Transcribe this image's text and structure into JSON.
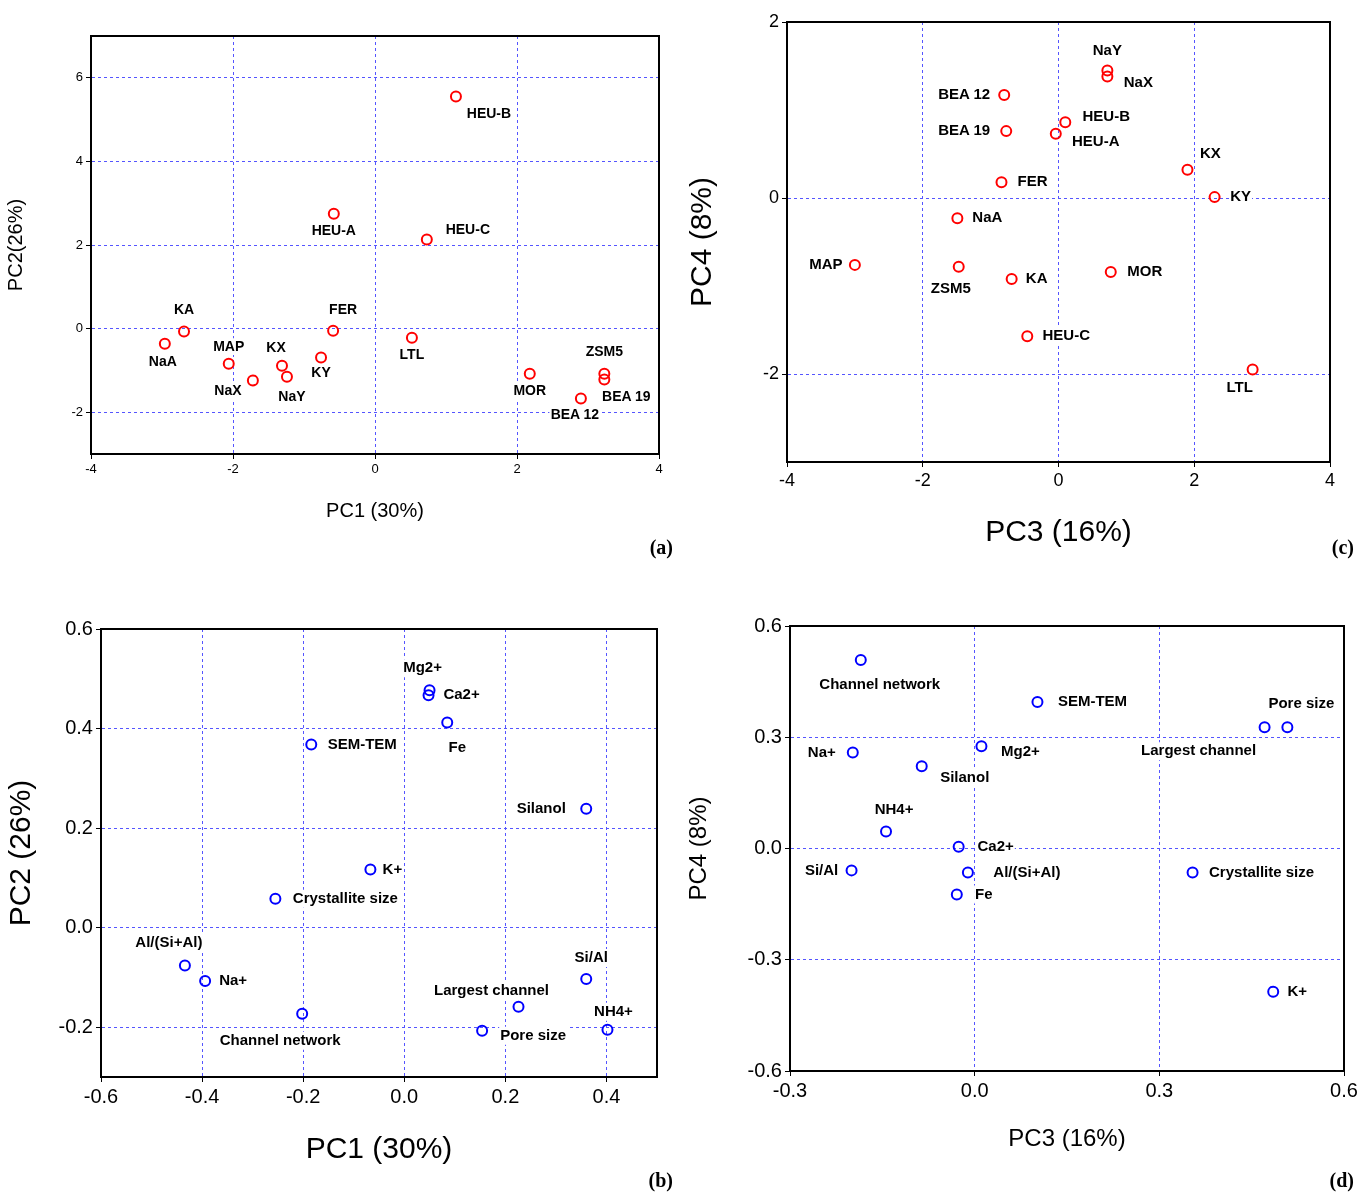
{
  "chart_data": [
    {
      "type": "scatter",
      "xlabel": "PC1 (30%)",
      "ylabel": "PC2(26%)",
      "xlim": [
        -4,
        4
      ],
      "xticks": [
        -4,
        -2,
        0,
        2,
        4
      ],
      "ylim": [
        -3,
        7
      ],
      "yticks": [
        -2,
        0,
        2,
        4,
        6
      ],
      "grid": true,
      "marker": "circle",
      "series": [
        {
          "color": "#ff0000",
          "x": [
            -2.96,
            -2.69,
            -2.06,
            -1.72,
            -1.31,
            -1.24,
            -0.76,
            -0.59,
            -0.58,
            0.73,
            1.14,
            0.52,
            2.18,
            2.9,
            3.23,
            3.23
          ],
          "values": [
            -0.36,
            -0.07,
            -0.84,
            -1.24,
            -0.89,
            -1.15,
            -0.69,
            -0.05,
            2.75,
            2.13,
            5.55,
            -0.22,
            -1.08,
            -1.67,
            -1.08,
            -1.22
          ]
        }
      ],
      "annotations": [
        {
          "text": "NaA",
          "x": -2.96,
          "y": -0.36
        },
        {
          "text": "KA",
          "x": -2.69,
          "y": -0.07
        },
        {
          "text": "MAP",
          "x": -2.06,
          "y": -0.84
        },
        {
          "text": "NaX",
          "x": -1.72,
          "y": -1.24
        },
        {
          "text": "KX",
          "x": -1.31,
          "y": -0.89
        },
        {
          "text": "NaY",
          "x": -1.24,
          "y": -1.15
        },
        {
          "text": "KY",
          "x": -0.76,
          "y": -0.69
        },
        {
          "text": "FER",
          "x": -0.59,
          "y": -0.05
        },
        {
          "text": "HEU-A",
          "x": -0.58,
          "y": 2.75
        },
        {
          "text": "HEU-C",
          "x": 0.73,
          "y": 2.13
        },
        {
          "text": "HEU-B",
          "x": 1.14,
          "y": 5.55
        },
        {
          "text": "LTL",
          "x": 0.52,
          "y": -0.22
        },
        {
          "text": "MOR",
          "x": 2.18,
          "y": -1.08
        },
        {
          "text": "BEA 12",
          "x": 2.9,
          "y": -1.67
        },
        {
          "text": "ZSM5",
          "x": 3.23,
          "y": -1.08
        },
        {
          "text": "BEA 19",
          "x": 3.23,
          "y": -1.22
        },
        "(a)"
      ]
    },
    {
      "type": "scatter",
      "xlabel": "PC3 (16%)",
      "ylabel": "PC4 (8%)",
      "xlim": [
        -4,
        4
      ],
      "xticks": [
        -4,
        -2,
        0,
        2,
        4
      ],
      "ylim": [
        -3,
        2
      ],
      "yticks": [
        -2,
        0,
        2
      ],
      "grid": true,
      "marker": "circle",
      "series": [
        {
          "color": "#ff0000",
          "x": [
            0.72,
            0.72,
            -0.8,
            -0.77,
            0.1,
            -0.04,
            1.9,
            2.3,
            -0.84,
            -1.49,
            -3.0,
            -1.47,
            -0.69,
            0.77,
            -0.46,
            2.86
          ],
          "values": [
            1.45,
            1.38,
            1.17,
            0.76,
            0.86,
            0.73,
            0.32,
            0.01,
            0.18,
            -0.23,
            -0.76,
            -0.78,
            -0.92,
            -0.84,
            -1.57,
            -1.95
          ]
        }
      ],
      "annotations": [
        {
          "text": "NaY",
          "x": 0.72,
          "y": 1.45
        },
        {
          "text": "NaX",
          "x": 0.72,
          "y": 1.38
        },
        {
          "text": "BEA 12",
          "x": -0.8,
          "y": 1.17
        },
        {
          "text": "BEA 19",
          "x": -0.77,
          "y": 0.76
        },
        {
          "text": "HEU-B",
          "x": 0.1,
          "y": 0.86
        },
        {
          "text": "HEU-A",
          "x": -0.04,
          "y": 0.73
        },
        {
          "text": "KX",
          "x": 1.9,
          "y": 0.32
        },
        {
          "text": "KY",
          "x": 2.3,
          "y": 0.01
        },
        {
          "text": "FER",
          "x": -0.84,
          "y": 0.18
        },
        {
          "text": "NaA",
          "x": -1.49,
          "y": -0.23
        },
        {
          "text": "MAP",
          "x": -3.0,
          "y": -0.76
        },
        {
          "text": "ZSM5",
          "x": -1.47,
          "y": -0.78
        },
        {
          "text": "KA",
          "x": -0.69,
          "y": -0.92
        },
        {
          "text": "MOR",
          "x": 0.77,
          "y": -0.84
        },
        {
          "text": "HEU-C",
          "x": -0.46,
          "y": -1.57
        },
        {
          "text": "LTL",
          "x": 2.86,
          "y": -1.95
        },
        "(c)"
      ]
    },
    {
      "type": "scatter",
      "xlabel": "PC1 (30%)",
      "ylabel": "PC2 (26%)",
      "xlim": [
        -0.6,
        0.5
      ],
      "xticks": [
        {
          "value": -0.6,
          "label": "-0.6"
        },
        {
          "value": -0.4,
          "label": "-0.4"
        },
        {
          "value": -0.2,
          "label": "-0.2"
        },
        {
          "value": 0,
          "label": "0.0"
        },
        {
          "value": 0.2,
          "label": "0.2"
        },
        {
          "value": 0.4,
          "label": "0.4"
        }
      ],
      "ylim": [
        -0.3,
        0.6
      ],
      "yticks": [
        {
          "value": -0.2,
          "label": "-0.2"
        },
        {
          "value": 0,
          "label": "0.0"
        },
        {
          "value": 0.2,
          "label": "0.2"
        },
        {
          "value": 0.4,
          "label": "0.4"
        },
        {
          "value": 0.6,
          "label": "0.6"
        }
      ],
      "grid": true,
      "marker": "circle",
      "series": [
        {
          "color": "#0000ff",
          "x": [
            0.05,
            0.048,
            0.085,
            -0.184,
            0.36,
            -0.067,
            -0.255,
            -0.434,
            -0.394,
            -0.202,
            0.36,
            0.226,
            0.154,
            0.402
          ],
          "values": [
            0.477,
            0.467,
            0.412,
            0.368,
            0.239,
            0.117,
            0.058,
            -0.076,
            -0.107,
            -0.173,
            -0.103,
            -0.159,
            -0.207,
            -0.205
          ]
        }
      ],
      "annotations": [
        {
          "text": "Mg2+",
          "x": 0.05,
          "y": 0.477
        },
        {
          "text": "Ca2+",
          "x": 0.048,
          "y": 0.467
        },
        {
          "text": "Fe",
          "x": 0.085,
          "y": 0.412
        },
        {
          "text": "SEM-TEM",
          "x": -0.184,
          "y": 0.368
        },
        {
          "text": "Silanol",
          "x": 0.36,
          "y": 0.239
        },
        {
          "text": "K+",
          "x": -0.067,
          "y": 0.117
        },
        {
          "text": "Crystallite size",
          "x": -0.255,
          "y": 0.058
        },
        {
          "text": "Al/(Si+Al)",
          "x": -0.434,
          "y": -0.076
        },
        {
          "text": "Na+",
          "x": -0.394,
          "y": -0.107
        },
        {
          "text": "Channel network",
          "x": -0.202,
          "y": -0.173
        },
        {
          "text": "Si/Al",
          "x": 0.36,
          "y": -0.103
        },
        {
          "text": "Largest channel",
          "x": 0.226,
          "y": -0.159
        },
        {
          "text": "Pore size",
          "x": 0.154,
          "y": -0.207
        },
        {
          "text": "NH4+",
          "x": 0.402,
          "y": -0.205
        },
        "(b)"
      ]
    },
    {
      "type": "scatter",
      "xlabel": "PC3 (16%)",
      "ylabel": "PC4 (8%)",
      "xlim": [
        -0.3,
        0.6
      ],
      "xticks": [
        {
          "value": -0.3,
          "label": "-0.3"
        },
        {
          "value": 0,
          "label": "0.0"
        },
        {
          "value": 0.3,
          "label": "0.3"
        },
        {
          "value": 0.6,
          "label": "0.6"
        }
      ],
      "ylim": [
        -0.6,
        0.6
      ],
      "yticks": [
        {
          "value": -0.6,
          "label": "-0.6"
        },
        {
          "value": -0.3,
          "label": "-0.3"
        },
        {
          "value": 0,
          "label": "0.0"
        },
        {
          "value": 0.3,
          "label": "0.3"
        },
        {
          "value": 0.6,
          "label": "0.6"
        }
      ],
      "grid": true,
      "marker": "circle",
      "series": [
        {
          "color": "#0000ff",
          "x": [
            -0.185,
            0.102,
            0.508,
            0.471,
            -0.198,
            0.011,
            -0.086,
            -0.144,
            -0.026,
            -0.2,
            -0.011,
            0.354,
            -0.029,
            0.485
          ],
          "values": [
            0.508,
            0.395,
            0.327,
            0.327,
            0.259,
            0.276,
            0.222,
            0.046,
            0.005,
            -0.059,
            -0.065,
            -0.065,
            -0.124,
            -0.386
          ]
        }
      ],
      "annotations": [
        {
          "text": "Channel network",
          "x": -0.185,
          "y": 0.508
        },
        {
          "text": "SEM-TEM",
          "x": 0.102,
          "y": 0.395
        },
        {
          "text": "Pore size",
          "x": 0.508,
          "y": 0.327
        },
        {
          "text": "Largest channel",
          "x": 0.471,
          "y": 0.327
        },
        {
          "text": "Na+",
          "x": -0.198,
          "y": 0.259
        },
        {
          "text": "Mg2+",
          "x": 0.011,
          "y": 0.276
        },
        {
          "text": "Silanol",
          "x": -0.086,
          "y": 0.222
        },
        {
          "text": "NH4+",
          "x": -0.144,
          "y": 0.046
        },
        {
          "text": "Ca2+",
          "x": -0.026,
          "y": 0.005
        },
        {
          "text": "Si/Al",
          "x": -0.2,
          "y": -0.059
        },
        {
          "text": "Al/(Si+Al)",
          "x": -0.011,
          "y": -0.065
        },
        {
          "text": "Crystallite size",
          "x": 0.354,
          "y": -0.065
        },
        {
          "text": "Fe",
          "x": -0.029,
          "y": -0.124
        },
        {
          "text": "K+",
          "x": 0.485,
          "y": -0.386
        },
        "(d)"
      ]
    }
  ]
}
